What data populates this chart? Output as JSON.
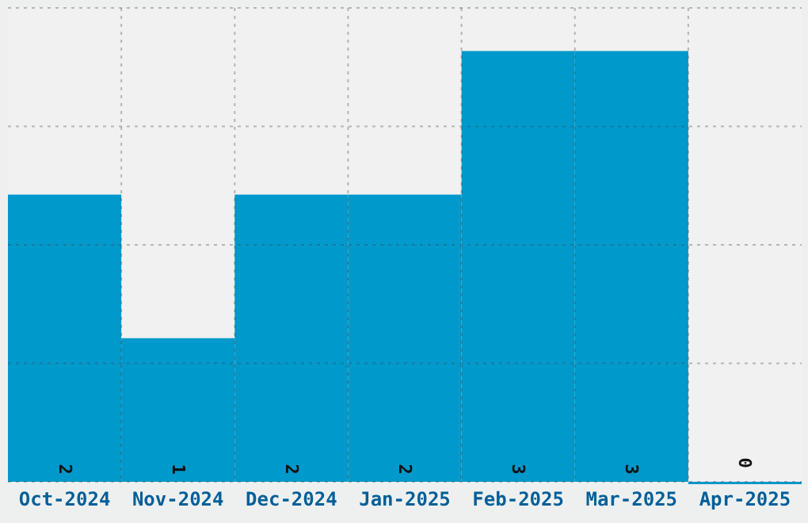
{
  "chart_data": {
    "type": "bar",
    "categories": [
      "Oct-2024",
      "Nov-2024",
      "Dec-2024",
      "Jan-2025",
      "Feb-2025",
      "Mar-2025",
      "Apr-2025"
    ],
    "values": [
      2,
      1,
      2,
      2,
      3,
      3,
      0
    ],
    "color": "#0099cc",
    "ylim": [
      0,
      3.3
    ],
    "yticks": [
      {
        "value": 0,
        "label": null
      },
      {
        "value": 0.825,
        "label": null
      },
      {
        "value": 1.65,
        "label": null
      },
      {
        "value": 2.475,
        "label": null
      },
      {
        "value": 3.3,
        "label": null
      }
    ],
    "tick_labels": "x",
    "grid": true,
    "data_labels": true
  }
}
